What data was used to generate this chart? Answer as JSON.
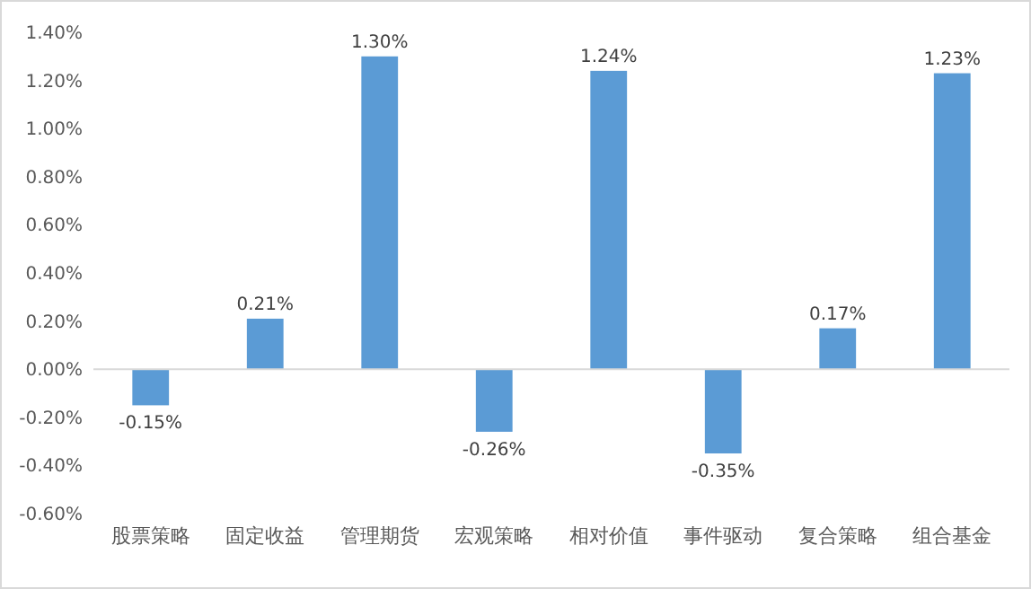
{
  "chart_data": {
    "type": "bar",
    "categories": [
      "股票策略",
      "固定收益",
      "管理期货",
      "宏观策略",
      "相对价值",
      "事件驱动",
      "复合策略",
      "组合基金"
    ],
    "values": [
      -0.15,
      0.21,
      1.3,
      -0.26,
      1.24,
      -0.35,
      0.17,
      1.23
    ],
    "value_labels": [
      "-0.15%",
      "0.21%",
      "1.30%",
      "-0.26%",
      "1.24%",
      "-0.35%",
      "0.17%",
      "1.23%"
    ],
    "color": "#5b9bd5",
    "ylim": [
      -0.6,
      1.4
    ],
    "yticks": [
      {
        "value": -0.6,
        "label": "-0.60%"
      },
      {
        "value": -0.4,
        "label": "-0.40%"
      },
      {
        "value": -0.2,
        "label": "-0.20%"
      },
      {
        "value": 0,
        "label": "0.00%"
      },
      {
        "value": 0.2,
        "label": "0.20%"
      },
      {
        "value": 0.4,
        "label": "0.40%"
      },
      {
        "value": 0.6,
        "label": "0.60%"
      },
      {
        "value": 0.8,
        "label": "0.80%"
      },
      {
        "value": 1.0,
        "label": "1.00%"
      },
      {
        "value": 1.2,
        "label": "1.20%"
      },
      {
        "value": 1.4,
        "label": "1.40%"
      }
    ]
  }
}
